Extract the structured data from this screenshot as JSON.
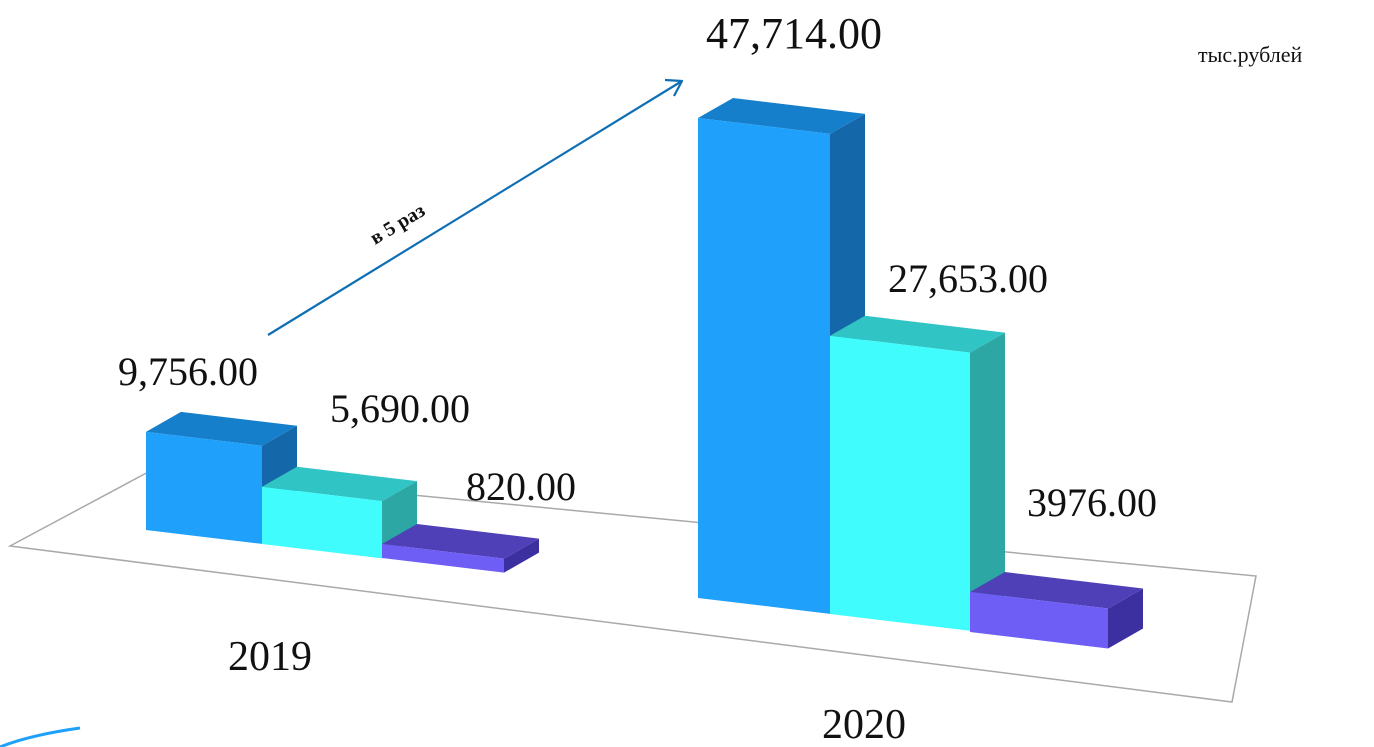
{
  "chart_data": {
    "type": "bar",
    "categories": [
      "2019",
      "2020"
    ],
    "series": [
      {
        "values": [
          9756,
          47714
        ],
        "labels": [
          "9,756.00",
          "47,714.00"
        ],
        "color": "#1ea0fb"
      },
      {
        "values": [
          5690,
          27653
        ],
        "labels": [
          "5,690.00",
          "27,653.00"
        ],
        "color": "#40fcfc"
      },
      {
        "values": [
          820,
          3976
        ],
        "labels": [
          "820.00",
          "3976.00"
        ],
        "color": "#6e5ef5"
      }
    ],
    "unit_label": "тыс.рублей",
    "annotation": "в 5 раз",
    "colors": {
      "blue_front": "#1ea0fb",
      "blue_top": "#167fcb",
      "blue_side": "#1467a8",
      "cyan_front": "#40fcfc",
      "cyan_top": "#31c4c4",
      "cyan_side": "#2ca7a3",
      "purple_front": "#6e5ef5",
      "purple_top": "#4f40b8",
      "purple_side": "#3c2fa0",
      "arrow": "#0f6fb5",
      "floor": "#a9a9a9"
    }
  }
}
